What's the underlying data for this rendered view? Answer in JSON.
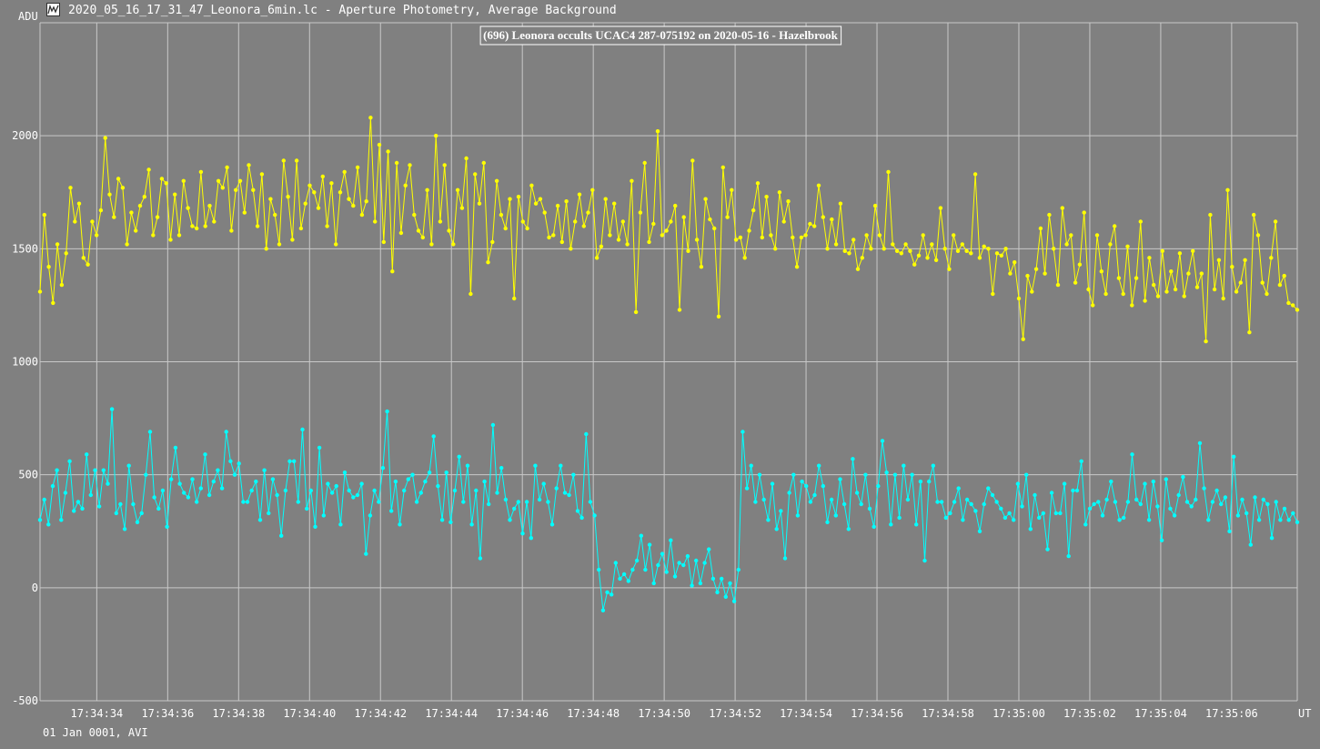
{
  "window": {
    "title": "2020_05_16_17_31_47_Leonora_6min.lc - Aperture Photometry, Average Background",
    "icon": "lightcurve-app-icon"
  },
  "footer": {
    "date_label": "01 Jan 0001, AVI"
  },
  "colors": {
    "background": "#808080",
    "grid": "#c8c8c8",
    "series_target": "#ffff00",
    "series_comparison": "#00ffff",
    "text": "#ffffff"
  },
  "chart_data": {
    "type": "line",
    "title": "(696) Leonora occults UCAC4 287-075192 on 2020-05-16 - Hazelbrook",
    "ylabel": "ADU",
    "xlabel": "UT",
    "ylim": [
      -500,
      2500
    ],
    "yticks": [
      2000,
      1500,
      1000,
      500,
      0,
      -500
    ],
    "xlim": [
      "17:34:32.40",
      "17:35:07.85"
    ],
    "xticks": [
      "17:34:34",
      "17:34:36",
      "17:34:38",
      "17:34:40",
      "17:34:42",
      "17:34:44",
      "17:34:46",
      "17:34:48",
      "17:34:50",
      "17:34:52",
      "17:34:54",
      "17:34:56",
      "17:34:58",
      "17:35:00",
      "17:35:02",
      "17:35:04",
      "17:35:06"
    ],
    "grid": true,
    "markers": true,
    "samples_per_second": 25,
    "series": [
      {
        "color": "#ffff00",
        "x_start": "17:34:32.40",
        "x_end": "17:35:07.85",
        "sampling_note": "values at every 4th sample (0.16 s), read from the figure",
        "values": [
          1310,
          1650,
          1420,
          1260,
          1520,
          1340,
          1480,
          1770,
          1620,
          1700,
          1460,
          1430,
          1620,
          1560,
          1670,
          1990,
          1740,
          1640,
          1810,
          1770,
          1520,
          1660,
          1580,
          1690,
          1730,
          1850,
          1560,
          1640,
          1810,
          1790,
          1540,
          1740,
          1560,
          1800,
          1680,
          1600,
          1590,
          1840,
          1600,
          1690,
          1620,
          1800,
          1770,
          1860,
          1580,
          1760,
          1800,
          1660,
          1870,
          1760,
          1600,
          1830,
          1500,
          1720,
          1650,
          1520,
          1890,
          1730,
          1540,
          1890,
          1590,
          1700,
          1780,
          1750,
          1680,
          1820,
          1600,
          1790,
          1520,
          1750,
          1840,
          1720,
          1690,
          1860,
          1650,
          1710,
          2080,
          1620,
          1960,
          1530,
          1930,
          1400,
          1880,
          1570,
          1780,
          1870,
          1650,
          1580,
          1550,
          1760,
          1520,
          2000,
          1620,
          1870,
          1580,
          1520,
          1760,
          1680,
          1900,
          1300,
          1830,
          1700,
          1880,
          1440,
          1530,
          1800,
          1650,
          1590,
          1720,
          1280,
          1730,
          1620,
          1590,
          1780,
          1700,
          1720,
          1660,
          1550,
          1560,
          1690,
          1530,
          1710,
          1500,
          1620,
          1740,
          1600,
          1660,
          1760,
          1460,
          1510,
          1720,
          1560,
          1700,
          1540,
          1620,
          1520,
          1800,
          1220,
          1660,
          1880,
          1530,
          1610,
          2020,
          1560,
          1580,
          1620,
          1690,
          1230,
          1640,
          1490,
          1890,
          1540,
          1420,
          1720,
          1630,
          1590,
          1200,
          1860,
          1640,
          1760,
          1540,
          1550,
          1460,
          1580,
          1670,
          1790,
          1550,
          1730,
          1560,
          1500,
          1750,
          1620,
          1710,
          1550,
          1420,
          1550,
          1560,
          1610,
          1600,
          1780,
          1640,
          1500,
          1630,
          1520,
          1700,
          1490,
          1480,
          1540,
          1410,
          1460,
          1560,
          1500,
          1690,
          1560,
          1500,
          1840,
          1520,
          1490,
          1480,
          1520,
          1490,
          1430,
          1470,
          1560,
          1460,
          1520,
          1450,
          1680,
          1500,
          1410,
          1560,
          1490,
          1520,
          1490,
          1480,
          1830,
          1460,
          1510,
          1500,
          1300,
          1480,
          1470,
          1500,
          1390,
          1440,
          1280,
          1100,
          1380,
          1310,
          1410,
          1590,
          1390,
          1650,
          1500,
          1340,
          1680,
          1520,
          1560,
          1350,
          1430,
          1660,
          1320,
          1250,
          1560,
          1400,
          1300,
          1520,
          1600,
          1370,
          1300,
          1510,
          1250,
          1370,
          1620,
          1270,
          1460,
          1340,
          1290,
          1490,
          1310,
          1400,
          1320,
          1480,
          1290,
          1390,
          1490,
          1330,
          1390,
          1090,
          1650,
          1320,
          1450,
          1280,
          1760,
          1420,
          1310,
          1350,
          1450,
          1130,
          1650,
          1560,
          1350,
          1300,
          1460,
          1620,
          1340,
          1380,
          1260,
          1250,
          1230
        ]
      },
      {
        "color": "#00ffff",
        "x_start": "17:34:32.40",
        "x_end": "17:35:07.85",
        "sampling_note": "values at every 4th sample (0.16 s), read from the figure",
        "values": [
          300,
          390,
          280,
          450,
          520,
          300,
          420,
          560,
          340,
          380,
          350,
          590,
          410,
          520,
          360,
          520,
          460,
          790,
          330,
          370,
          260,
          540,
          370,
          290,
          330,
          500,
          690,
          400,
          350,
          430,
          270,
          480,
          620,
          460,
          420,
          400,
          480,
          380,
          440,
          590,
          410,
          470,
          520,
          440,
          690,
          560,
          500,
          550,
          380,
          380,
          430,
          470,
          300,
          520,
          330,
          480,
          410,
          230,
          430,
          560,
          560,
          380,
          700,
          350,
          430,
          270,
          620,
          320,
          460,
          420,
          450,
          280,
          510,
          430,
          400,
          410,
          460,
          150,
          320,
          430,
          380,
          530,
          780,
          340,
          470,
          280,
          430,
          480,
          500,
          380,
          420,
          470,
          510,
          670,
          450,
          300,
          510,
          290,
          430,
          580,
          380,
          540,
          280,
          430,
          130,
          470,
          370,
          720,
          420,
          530,
          390,
          300,
          350,
          380,
          240,
          380,
          220,
          540,
          390,
          460,
          380,
          280,
          440,
          540,
          420,
          410,
          500,
          340,
          310,
          680,
          380,
          320,
          80,
          -100,
          -20,
          -30,
          110,
          40,
          60,
          30,
          80,
          120,
          230,
          80,
          190,
          20,
          100,
          150,
          70,
          210,
          50,
          110,
          100,
          140,
          10,
          120,
          20,
          110,
          170,
          40,
          -20,
          40,
          -40,
          20,
          -60,
          80,
          690,
          440,
          540,
          380,
          500,
          390,
          300,
          460,
          260,
          340,
          130,
          420,
          500,
          320,
          470,
          450,
          380,
          410,
          540,
          450,
          290,
          390,
          320,
          480,
          370,
          260,
          570,
          420,
          370,
          500,
          350,
          270,
          450,
          650,
          510,
          280,
          500,
          310,
          540,
          390,
          500,
          280,
          470,
          120,
          470,
          540,
          380,
          380,
          310,
          330,
          380,
          440,
          300,
          390,
          370,
          340,
          250,
          370,
          440,
          410,
          380,
          350,
          310,
          330,
          300,
          460,
          360,
          500,
          260,
          410,
          310,
          330,
          170,
          420,
          330,
          330,
          460,
          140,
          430,
          430,
          560,
          280,
          350,
          370,
          380,
          320,
          390,
          470,
          380,
          300,
          310,
          380,
          590,
          390,
          370,
          460,
          300,
          470,
          360,
          210,
          480,
          350,
          320,
          410,
          490,
          380,
          360,
          390,
          640,
          440,
          300,
          380,
          430,
          370,
          400,
          250,
          580,
          320,
          390,
          330,
          190,
          400,
          300,
          390,
          370,
          220,
          380,
          300,
          350,
          300,
          330,
          290
        ]
      }
    ]
  }
}
